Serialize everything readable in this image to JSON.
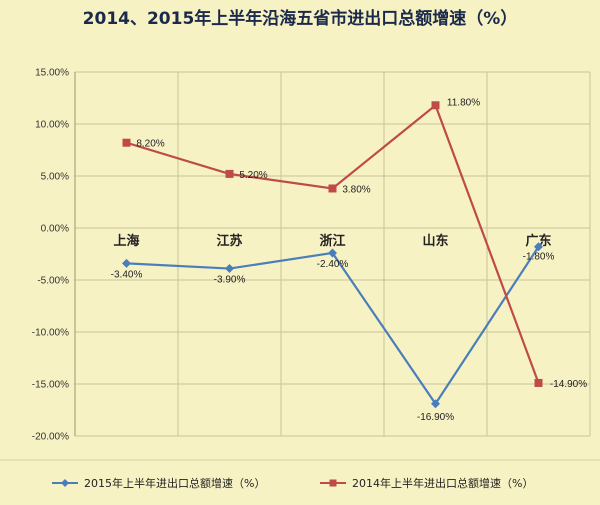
{
  "chart_data": {
    "type": "line",
    "title": "2014、2015年上半年沿海五省市进出口总额增速（%）",
    "categories": [
      "上海",
      "江苏",
      "浙江",
      "山东",
      "广东"
    ],
    "y_ticks": [
      "15.00%",
      "10.00%",
      "5.00%",
      "0.00%",
      "-5.00%",
      "-10.00%",
      "-15.00%",
      "-20.00%"
    ],
    "ylim": [
      -20,
      15
    ],
    "grid": true,
    "legend_position": "bottom",
    "series": [
      {
        "name": "2015年上半年进出口总额增速（%）",
        "values": [
          -3.4,
          -3.9,
          -2.4,
          -16.9,
          -1.8
        ],
        "labels": [
          "-3.40%",
          "-3.90%",
          "-2.40%",
          "-16.90%",
          "-1.80%"
        ],
        "color": "#4a7ebb",
        "marker": "diamond"
      },
      {
        "name": "2014年上半年进出口总额增速（%）",
        "values": [
          8.2,
          5.2,
          3.8,
          11.8,
          -14.9
        ],
        "labels": [
          "8.20%",
          "5.20%",
          "3.80%",
          "11.80%",
          "-14.90%"
        ],
        "color": "#be4b48",
        "marker": "square"
      }
    ]
  }
}
